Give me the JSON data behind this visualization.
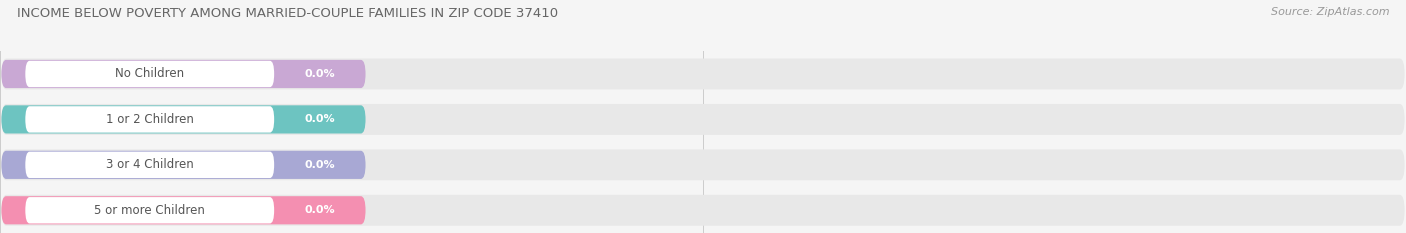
{
  "title": "INCOME BELOW POVERTY AMONG MARRIED-COUPLE FAMILIES IN ZIP CODE 37410",
  "source": "Source: ZipAtlas.com",
  "categories": [
    "No Children",
    "1 or 2 Children",
    "3 or 4 Children",
    "5 or more Children"
  ],
  "values": [
    0.0,
    0.0,
    0.0,
    0.0
  ],
  "bar_colors": [
    "#c9a8d4",
    "#6dc4c1",
    "#a8a8d4",
    "#f48fb1"
  ],
  "bg_color": "#f5f5f5",
  "bar_bg_color": "#e8e8e8",
  "title_color": "#666666",
  "source_color": "#999999",
  "figsize": [
    14.06,
    2.33
  ],
  "dpi": 100
}
